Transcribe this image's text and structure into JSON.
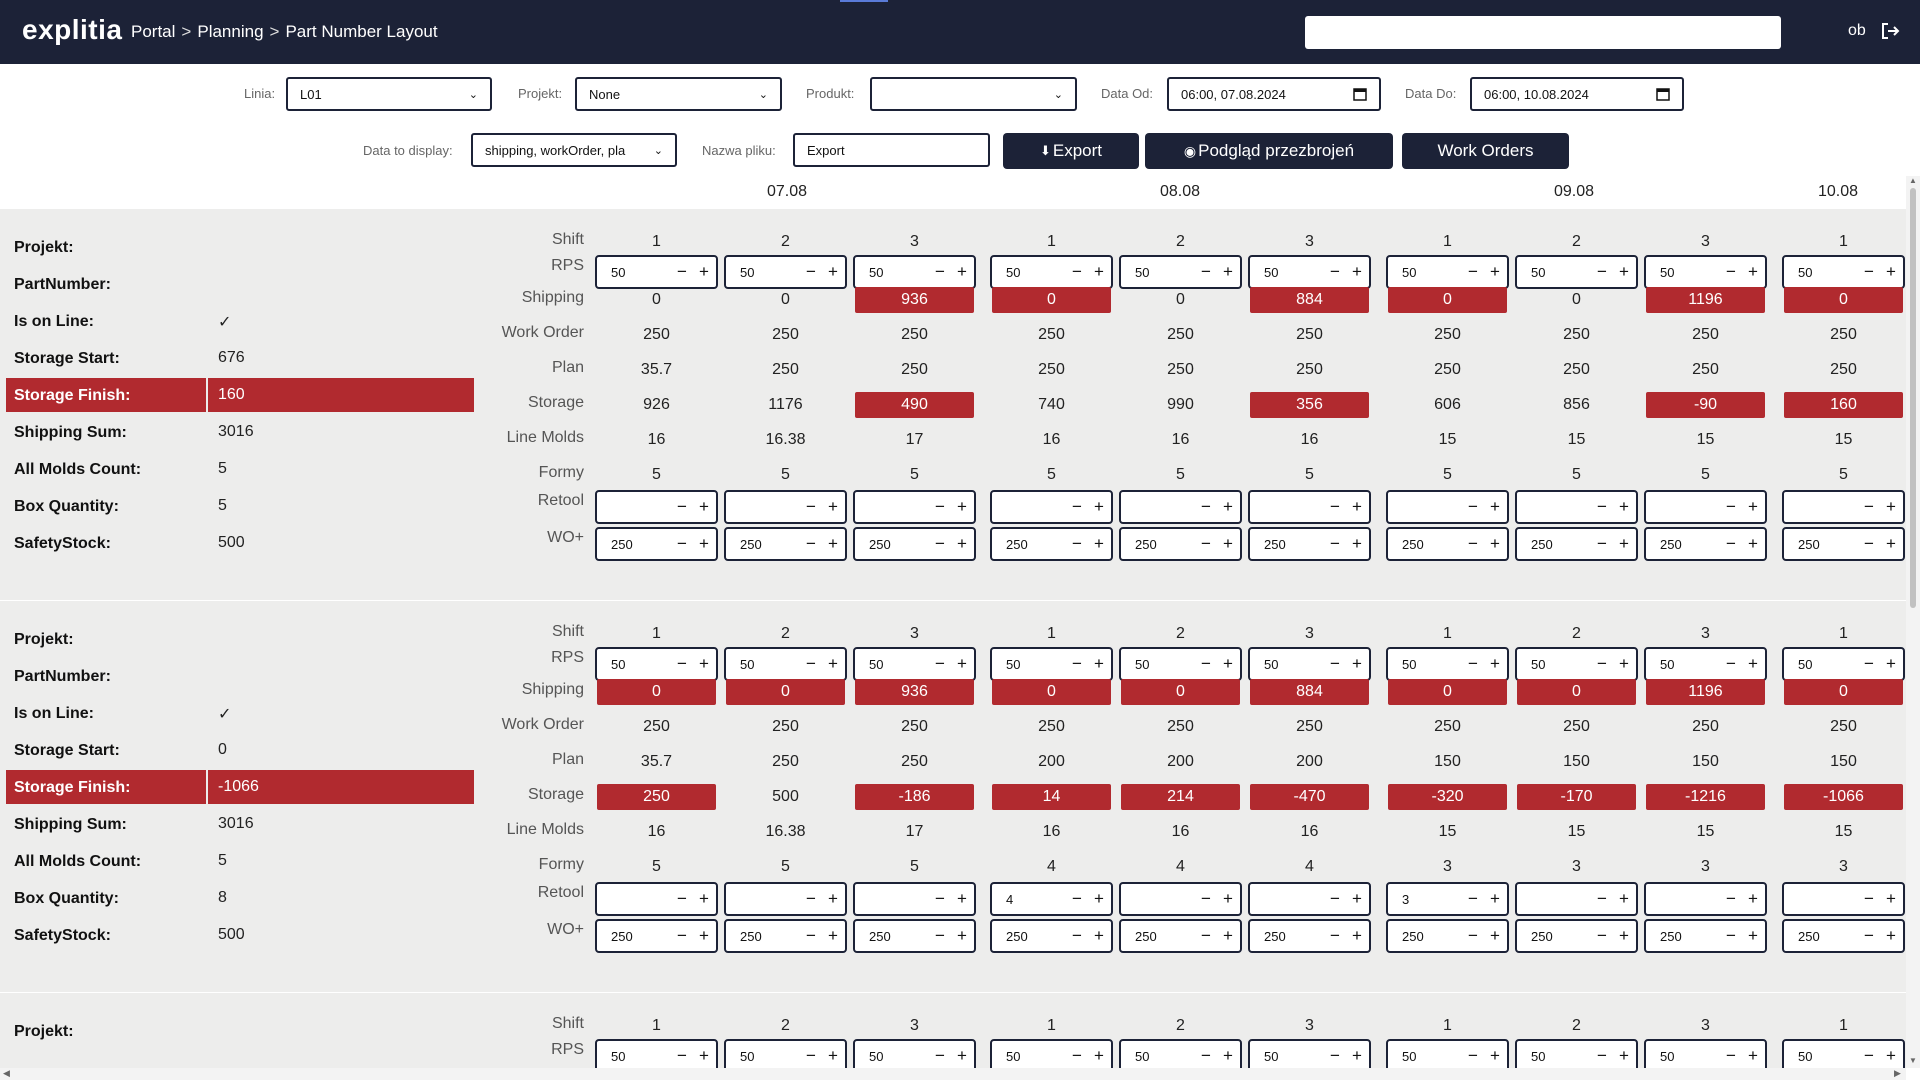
{
  "header": {
    "logo": "explitia",
    "breadcrumbs": [
      "Portal",
      "Planning",
      "Part Number Layout"
    ],
    "breadcrumb_separator": ">",
    "search_value": "",
    "user": "ob"
  },
  "filters": {
    "linia_label": "Linia:",
    "linia_value": "L01",
    "projekt_label": "Projekt:",
    "projekt_value": "None",
    "produkt_label": "Produkt:",
    "produkt_value": "",
    "data_od_label": "Data Od:",
    "data_od_value": "06:00, 07.08.2024",
    "data_do_label": "Data Do:",
    "data_do_value": "06:00, 10.08.2024",
    "display_label": "Data to display:",
    "display_value": "shipping, workOrder, pla",
    "file_label": "Nazwa pliku:",
    "file_value": "Export"
  },
  "buttons": {
    "export": "Export",
    "preview": "Podgląd przezbrojeń",
    "work_orders": "Work Orders"
  },
  "dates": [
    "07.08",
    "08.08",
    "09.08",
    "10.08"
  ],
  "row_labels": {
    "shift": "Shift",
    "rps": "RPS",
    "shipping": "Shipping",
    "work_order": "Work Order",
    "plan": "Plan",
    "storage": "Storage",
    "line_molds": "Line Molds",
    "formy": "Formy",
    "retool": "Retool",
    "wo": "WO+"
  },
  "info_labels": {
    "projekt": "Projekt:",
    "part_number": "PartNumber:",
    "is_on_line": "Is on Line:",
    "storage_start": "Storage Start:",
    "storage_finish": "Storage Finish:",
    "shipping_sum": "Shipping Sum:",
    "all_molds": "All Molds Count:",
    "box_qty": "Box Quantity:",
    "safety_stock": "SafetyStock:"
  },
  "blocks": [
    {
      "info": {
        "projekt": "",
        "part_number": "",
        "is_on_line": "✓",
        "storage_start": "676",
        "storage_finish": "160",
        "shipping_sum": "3016",
        "all_molds": "5",
        "box_qty": "5",
        "safety_stock": "500"
      },
      "shift": [
        "1",
        "2",
        "3",
        "1",
        "2",
        "3",
        "1",
        "2",
        "3",
        "1"
      ],
      "rps": [
        "50",
        "50",
        "50",
        "50",
        "50",
        "50",
        "50",
        "50",
        "50",
        "50"
      ],
      "shipping": [
        "0",
        "0",
        "936",
        "0",
        "0",
        "884",
        "0",
        "0",
        "1196",
        "0"
      ],
      "shipping_alert": [
        false,
        false,
        true,
        true,
        false,
        true,
        true,
        false,
        true,
        true
      ],
      "work_order": [
        "250",
        "250",
        "250",
        "250",
        "250",
        "250",
        "250",
        "250",
        "250",
        "250"
      ],
      "plan": [
        "35.7",
        "250",
        "250",
        "250",
        "250",
        "250",
        "250",
        "250",
        "250",
        "250"
      ],
      "storage": [
        "926",
        "1176",
        "490",
        "740",
        "990",
        "356",
        "606",
        "856",
        "-90",
        "160"
      ],
      "storage_alert": [
        false,
        false,
        true,
        false,
        false,
        true,
        false,
        false,
        true,
        true
      ],
      "line_molds": [
        "16",
        "16.38",
        "17",
        "16",
        "16",
        "16",
        "15",
        "15",
        "15",
        "15"
      ],
      "formy": [
        "5",
        "5",
        "5",
        "5",
        "5",
        "5",
        "5",
        "5",
        "5",
        "5"
      ],
      "retool": [
        "",
        "",
        "",
        "",
        "",
        "",
        "",
        "",
        "",
        ""
      ],
      "wo": [
        "250",
        "250",
        "250",
        "250",
        "250",
        "250",
        "250",
        "250",
        "250",
        "250"
      ]
    },
    {
      "info": {
        "projekt": "",
        "part_number": "",
        "is_on_line": "✓",
        "storage_start": "0",
        "storage_finish": "-1066",
        "shipping_sum": "3016",
        "all_molds": "5",
        "box_qty": "8",
        "safety_stock": "500"
      },
      "shift": [
        "1",
        "2",
        "3",
        "1",
        "2",
        "3",
        "1",
        "2",
        "3",
        "1"
      ],
      "rps": [
        "50",
        "50",
        "50",
        "50",
        "50",
        "50",
        "50",
        "50",
        "50",
        "50"
      ],
      "shipping": [
        "0",
        "0",
        "936",
        "0",
        "0",
        "884",
        "0",
        "0",
        "1196",
        "0"
      ],
      "shipping_alert": [
        true,
        true,
        true,
        true,
        true,
        true,
        true,
        true,
        true,
        true
      ],
      "work_order": [
        "250",
        "250",
        "250",
        "250",
        "250",
        "250",
        "250",
        "250",
        "250",
        "250"
      ],
      "plan": [
        "35.7",
        "250",
        "250",
        "200",
        "200",
        "200",
        "150",
        "150",
        "150",
        "150"
      ],
      "storage": [
        "250",
        "500",
        "-186",
        "14",
        "214",
        "-470",
        "-320",
        "-170",
        "-1216",
        "-1066"
      ],
      "storage_alert": [
        true,
        false,
        true,
        true,
        true,
        true,
        true,
        true,
        true,
        true
      ],
      "line_molds": [
        "16",
        "16.38",
        "17",
        "16",
        "16",
        "16",
        "15",
        "15",
        "15",
        "15"
      ],
      "formy": [
        "5",
        "5",
        "5",
        "4",
        "4",
        "4",
        "3",
        "3",
        "3",
        "3"
      ],
      "retool": [
        "",
        "",
        "",
        "4",
        "",
        "",
        "3",
        "",
        "",
        ""
      ],
      "wo": [
        "250",
        "250",
        "250",
        "250",
        "250",
        "250",
        "250",
        "250",
        "250",
        "250"
      ]
    },
    {
      "info": {
        "projekt": ""
      },
      "shift": [
        "1",
        "2",
        "3",
        "1",
        "2",
        "3",
        "1",
        "2",
        "3",
        "1"
      ],
      "rps": [
        "50",
        "50",
        "50",
        "50",
        "50",
        "50",
        "50",
        "50",
        "50",
        "50"
      ]
    }
  ],
  "colors": {
    "header_bg": "#1c2237",
    "alert_red": "#b12a2f",
    "block_bg": "#ededec"
  }
}
